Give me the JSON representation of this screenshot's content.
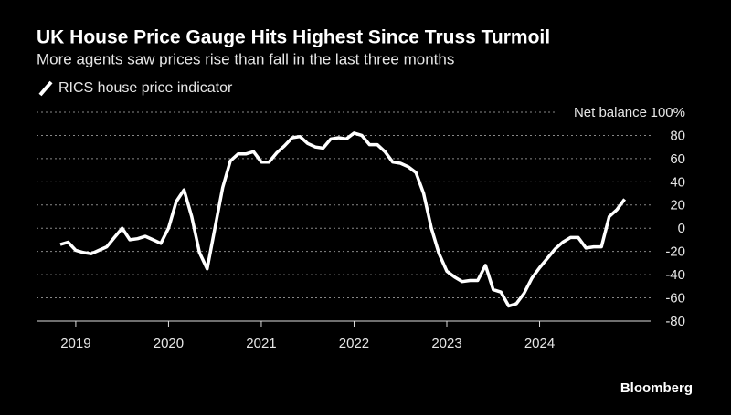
{
  "chart_data": {
    "type": "line",
    "title": "UK House Price Gauge Hits Highest Since Truss Turmoil",
    "subtitle": "More agents saw prices rise than fall in the last three months",
    "y_axis_label": "Net balance",
    "source": "Bloomberg",
    "categories": [
      null,
      null,
      "2019",
      null,
      null,
      null,
      null,
      null,
      null,
      null,
      null,
      null,
      null,
      null,
      "2020",
      null,
      null,
      null,
      null,
      null,
      null,
      null,
      null,
      null,
      null,
      null,
      "2021",
      null,
      null,
      null,
      null,
      null,
      null,
      null,
      null,
      null,
      null,
      null,
      "2022",
      null,
      null,
      null,
      null,
      null,
      null,
      null,
      null,
      null,
      null,
      null,
      "2023",
      null,
      null,
      null,
      null,
      null,
      null,
      null,
      null,
      null,
      null,
      null,
      "2024",
      null,
      null,
      null,
      null,
      null,
      null,
      null,
      null,
      null,
      null,
      null
    ],
    "series": [
      {
        "name": "RICS house price indicator",
        "color": "#ffffff",
        "values": [
          -14,
          -12,
          -19,
          -21,
          -22,
          -19,
          -16,
          -8,
          0,
          -10,
          -9,
          -7,
          -10,
          -13,
          0,
          23,
          33,
          10,
          -21,
          -35,
          0,
          35,
          58,
          64,
          64,
          66,
          57,
          57,
          65,
          71,
          78,
          79,
          73,
          70,
          69,
          77,
          78,
          77,
          82,
          80,
          72,
          72,
          66,
          57,
          56,
          53,
          48,
          30,
          0,
          -22,
          -37,
          -42,
          -46,
          -45,
          -45,
          -32,
          -53,
          -55,
          -67,
          -65,
          -56,
          -43,
          -34,
          -26,
          -18,
          -12,
          -8,
          -8,
          -17,
          -16,
          -16,
          10,
          16,
          25
        ]
      }
    ],
    "ylim": [
      -80,
      100
    ],
    "yticks": [
      -80,
      -60,
      -40,
      -20,
      0,
      20,
      40,
      60,
      80,
      {
        "value": 100,
        "label": "100%"
      }
    ],
    "grid": true
  }
}
